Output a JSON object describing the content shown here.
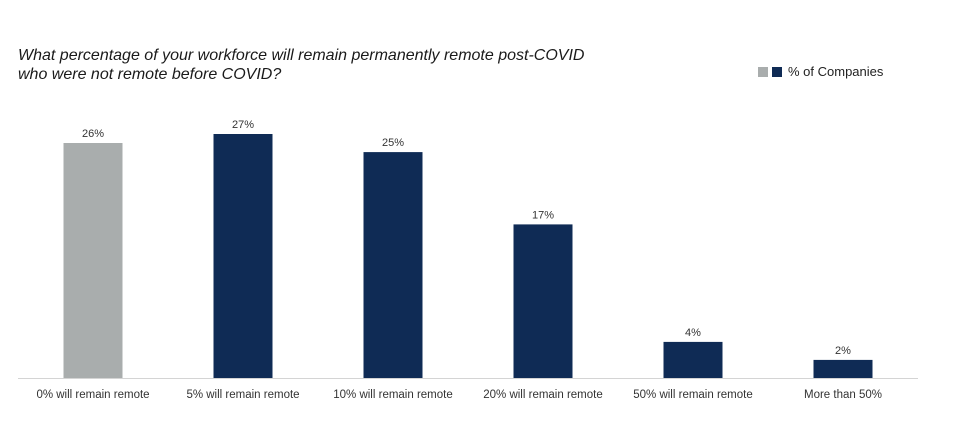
{
  "chart_data": {
    "type": "bar",
    "title_lines": [
      "What percentage of your workforce will remain permanently remote post-COVID",
      "who were not remote before COVID?"
    ],
    "categories": [
      "0% will remain remote",
      "5% will remain remote",
      "10% will remain remote",
      "20% will remain remote",
      "50% will remain remote",
      "More than 50%"
    ],
    "series": [
      {
        "name": "% of Companies",
        "values": [
          26,
          27,
          25,
          17,
          4,
          2
        ],
        "value_labels": [
          "26%",
          "27%",
          "25%",
          "17%",
          "4%",
          "2%"
        ]
      }
    ],
    "ylim": [
      0,
      27
    ],
    "grid": false,
    "legend_position": "top-right",
    "colors": {
      "primary": "#0f2b55",
      "highlight": "#a9adad",
      "highlight_index": 0
    }
  }
}
